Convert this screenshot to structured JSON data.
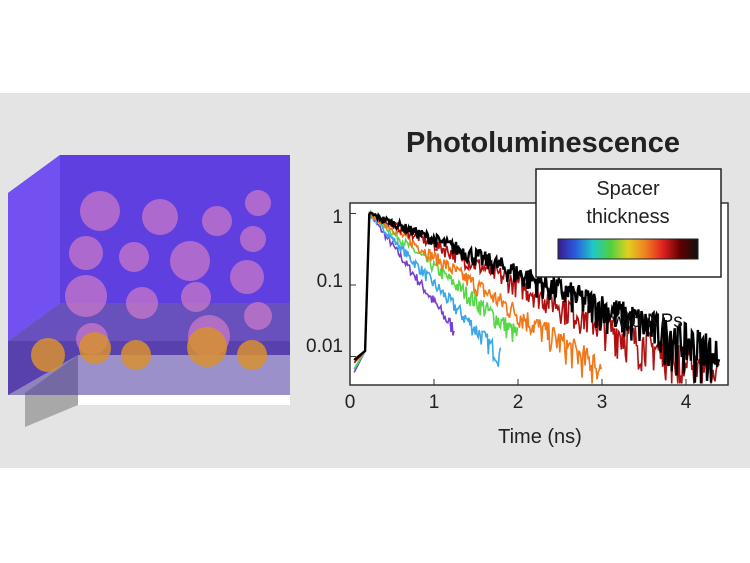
{
  "chart_data": {
    "type": "line",
    "title": "Photoluminescence",
    "xlabel": "Time (ns)",
    "ylabel": "",
    "xlim": [
      0,
      4.5
    ],
    "ylim": [
      0.004,
      1.4
    ],
    "yscale": "log",
    "x_ticks": [
      "0",
      "1",
      "2",
      "3",
      "4"
    ],
    "y_ticks": [
      "1",
      "0.1",
      "0.01"
    ],
    "legend": {
      "title_lines": [
        "Spacer",
        "thickness"
      ],
      "placement": "top-right",
      "colorbar": [
        "#3a1a8a",
        "#2a5ce0",
        "#20c8c8",
        "#50d040",
        "#e0d020",
        "#f08020",
        "#e02020",
        "#600000",
        "#101010"
      ]
    },
    "annotation": "w/o NPs",
    "series": [
      {
        "color": "#7a3fd0",
        "peak_x": 0.23,
        "decay_tau_ns": 0.27,
        "cutoff_x": 1.25
      },
      {
        "color": "#3aa8e8",
        "peak_x": 0.23,
        "decay_tau_ns": 0.34,
        "cutoff_x": 1.8
      },
      {
        "color": "#58d848",
        "peak_x": 0.23,
        "decay_tau_ns": 0.45,
        "cutoff_x": 2.0
      },
      {
        "color": "#f07818",
        "peak_x": 0.23,
        "decay_tau_ns": 0.55,
        "cutoff_x": 3.0
      },
      {
        "color": "#b01010",
        "peak_x": 0.23,
        "decay_tau_ns": 0.78,
        "cutoff_x": 4.4
      },
      {
        "color": "#000000",
        "peak_x": 0.23,
        "decay_tau_ns": 0.92,
        "cutoff_x": 4.4
      }
    ]
  },
  "illustration": {
    "block_color": "#6a45e8",
    "particle_color": "#c878c8",
    "bottom_particle_color": "#d89030"
  }
}
